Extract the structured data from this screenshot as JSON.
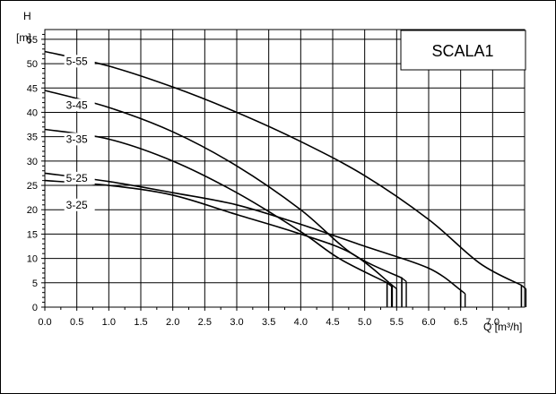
{
  "chart_data": {
    "type": "line",
    "title": "SCALA1",
    "xlabel": "Q [m³/h]",
    "ylabel_line1": "H",
    "ylabel_line2": "[m]",
    "xlim": [
      0,
      7.5
    ],
    "ylim": [
      0,
      57
    ],
    "x_ticks": [
      "0.0",
      "0.5",
      "1.0",
      "1.5",
      "2.0",
      "2.5",
      "3.0",
      "3.5",
      "4.0",
      "4.5",
      "5.0",
      "5.5",
      "6.0",
      "6.5",
      "7.0"
    ],
    "y_ticks": [
      "0",
      "5",
      "10",
      "15",
      "20",
      "25",
      "30",
      "35",
      "40",
      "45",
      "50",
      "55"
    ],
    "grid": true,
    "series": [
      {
        "name": "5-55",
        "label_at": [
          0.5,
          50.5
        ],
        "points": [
          [
            0,
            52.5
          ],
          [
            1,
            49.5
          ],
          [
            2,
            45.2
          ],
          [
            3,
            40.0
          ],
          [
            4,
            34.0
          ],
          [
            5,
            27.0
          ],
          [
            6,
            18.0
          ],
          [
            6.8,
            9.0
          ],
          [
            7.45,
            4.5
          ],
          [
            7.45,
            0
          ]
        ]
      },
      {
        "name": "3-45",
        "label_at": [
          0.5,
          41.5
        ],
        "points": [
          [
            0,
            44.5
          ],
          [
            1,
            41.0
          ],
          [
            2,
            36.0
          ],
          [
            3,
            29.0
          ],
          [
            4,
            20.0
          ],
          [
            4.8,
            11.0
          ],
          [
            5.58,
            6.0
          ],
          [
            5.58,
            0
          ]
        ]
      },
      {
        "name": "3-35",
        "label_at": [
          0.5,
          34.5
        ],
        "points": [
          [
            0,
            36.5
          ],
          [
            1,
            34.5
          ],
          [
            2,
            30.0
          ],
          [
            3,
            23.5
          ],
          [
            4,
            15.5
          ],
          [
            4.6,
            10.0
          ],
          [
            5.35,
            5.0
          ],
          [
            5.35,
            0
          ]
        ]
      },
      {
        "name": "5-25",
        "label_at": [
          0.5,
          26.5
        ],
        "points": [
          [
            0,
            27.5
          ],
          [
            1,
            25.8
          ],
          [
            2,
            23.5
          ],
          [
            3,
            21.0
          ],
          [
            4,
            17.0
          ],
          [
            5,
            12.5
          ],
          [
            6,
            8.0
          ],
          [
            6.5,
            3.5
          ],
          [
            6.5,
            0
          ]
        ]
      },
      {
        "name": "3-25",
        "label_at": [
          0.5,
          21.0
        ],
        "points": [
          [
            0,
            26.0
          ],
          [
            1,
            25.0
          ],
          [
            2,
            23.0
          ],
          [
            3,
            19.0
          ],
          [
            4,
            15.0
          ],
          [
            4.8,
            11.0
          ],
          [
            5.43,
            4.5
          ],
          [
            5.43,
            0
          ]
        ]
      }
    ]
  }
}
